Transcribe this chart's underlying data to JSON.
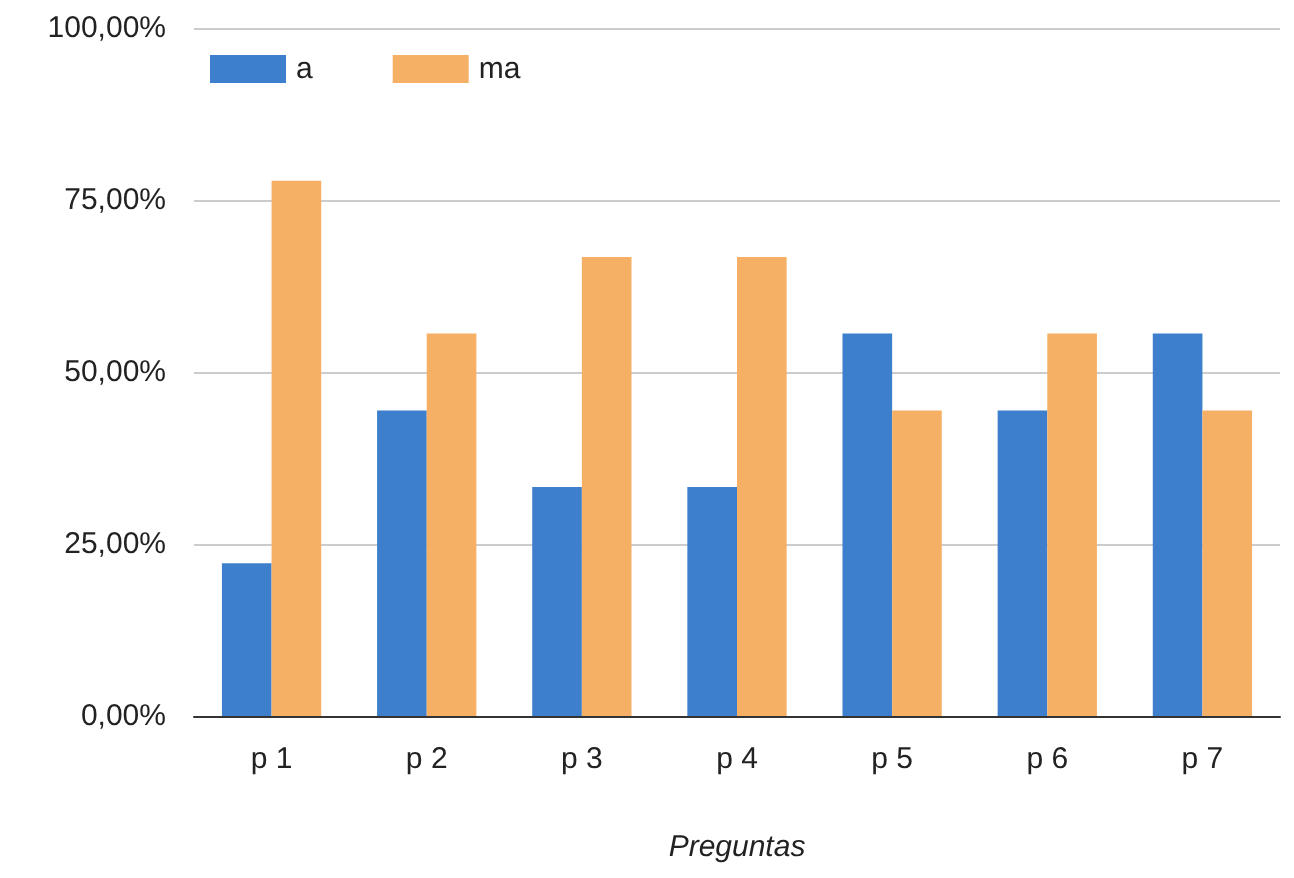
{
  "chart_data": {
    "type": "bar",
    "xlabel": "Preguntas",
    "categories": [
      "p 1",
      "p 2",
      "p 3",
      "p 4",
      "p 5",
      "p 6",
      "p 7"
    ],
    "series": [
      {
        "name": "a",
        "color": "#3d7fcc",
        "values": [
          22.2,
          44.4,
          33.3,
          33.3,
          55.6,
          44.4,
          55.6
        ]
      },
      {
        "name": "ma",
        "color": "#f5b066",
        "values": [
          77.8,
          55.6,
          66.7,
          66.7,
          44.4,
          55.6,
          44.4
        ]
      }
    ],
    "ylim": [
      0,
      100
    ],
    "yticks": [
      {
        "value": 0,
        "label": "0,00%"
      },
      {
        "value": 25,
        "label": "25,00%"
      },
      {
        "value": 50,
        "label": "50,00%"
      },
      {
        "value": 75,
        "label": "75,00%"
      },
      {
        "value": 100,
        "label": "100,00%"
      }
    ],
    "grid": "y",
    "legend": "top left"
  }
}
